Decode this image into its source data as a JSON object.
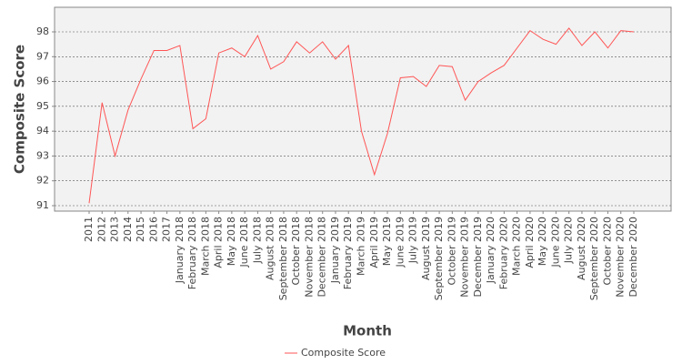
{
  "chart_data": {
    "type": "line",
    "x_label": "Month",
    "y_label": "Composite Score",
    "categories": [
      "2011",
      "2012",
      "2013",
      "2014",
      "2015",
      "2016",
      "2017",
      "January 2018",
      "February 2018",
      "March 2018",
      "April 2018",
      "May 2018",
      "June 2018",
      "July 2018",
      "August 2018",
      "September 2018",
      "October 2018",
      "November 2018",
      "December 2018",
      "January 2019",
      "February 2019",
      "March 2019",
      "April 2019",
      "May 2019",
      "June 2019",
      "July 2019",
      "August 2019",
      "September 2019",
      "October 2019",
      "November 2019",
      "December 2019",
      "January 2020",
      "February 2020",
      "March 2020",
      "April 2020",
      "May 2020",
      "June 2020",
      "July 2020",
      "August 2020",
      "September 2020",
      "October 2020",
      "November 2020",
      "December 2020"
    ],
    "series": [
      {
        "name": "Composite Score",
        "color": "#ff5555",
        "values": [
          91.1,
          95.15,
          93.0,
          94.85,
          96.1,
          97.25,
          97.25,
          97.45,
          94.1,
          94.5,
          97.15,
          97.35,
          97.0,
          97.85,
          96.5,
          96.8,
          97.6,
          97.15,
          97.6,
          96.9,
          97.45,
          94.0,
          92.25,
          93.9,
          96.15,
          96.2,
          95.8,
          96.65,
          96.6,
          95.25,
          96.0,
          96.35,
          96.65,
          97.35,
          98.05,
          97.7,
          97.5,
          98.15,
          97.45,
          98.0,
          97.35,
          98.05,
          98.0
        ]
      }
    ],
    "ylim": [
      90.78,
      98.99
    ],
    "yticks": [
      91,
      92,
      93,
      94,
      95,
      96,
      97,
      98
    ],
    "grid": true,
    "legend": "bottom"
  }
}
